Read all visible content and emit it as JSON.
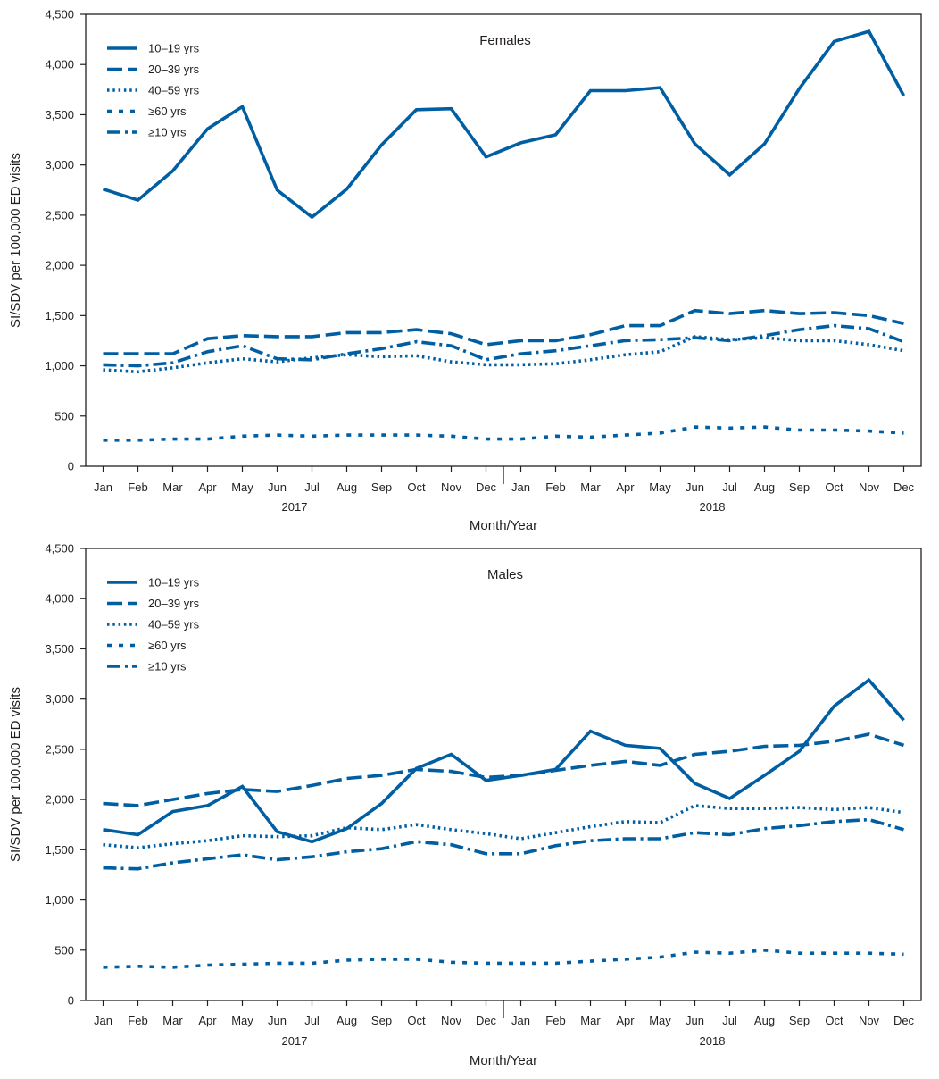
{
  "figure": {
    "series_color": "#005ea2",
    "axis_color": "#231f20"
  },
  "chart_data": [
    {
      "type": "line",
      "title": "Females",
      "xlabel": "Month/Year",
      "ylabel": "SI/SDV per 100,000 ED visits",
      "ylim": [
        0,
        4500
      ],
      "yticks": [
        0,
        500,
        1000,
        1500,
        2000,
        2500,
        3000,
        3500,
        4000,
        4500
      ],
      "ytick_labels": [
        "0",
        "500",
        "1,000",
        "1,500",
        "2,000",
        "2,500",
        "3,000",
        "3,500",
        "4,000",
        "4,500"
      ],
      "categories": [
        "Jan",
        "Feb",
        "Mar",
        "Apr",
        "May",
        "Jun",
        "Jul",
        "Aug",
        "Sep",
        "Oct",
        "Nov",
        "Dec",
        "Jan",
        "Feb",
        "Mar",
        "Apr",
        "May",
        "Jun",
        "Jul",
        "Aug",
        "Sep",
        "Oct",
        "Nov",
        "Dec"
      ],
      "year_labels": [
        "2017",
        "2018"
      ],
      "legend_position": "top-left",
      "grid": false,
      "series": [
        {
          "name": "10–19 yrs",
          "dash": "solid",
          "values": [
            2760,
            2650,
            2940,
            3360,
            3580,
            2750,
            2480,
            2760,
            3200,
            3550,
            3560,
            3080,
            3220,
            3300,
            3740,
            3740,
            3770,
            3210,
            2900,
            3210,
            3760,
            4230,
            4330,
            3690
          ]
        },
        {
          "name": "20–39 yrs",
          "dash": "long-dash",
          "values": [
            1120,
            1120,
            1120,
            1270,
            1300,
            1290,
            1290,
            1330,
            1330,
            1360,
            1320,
            1210,
            1250,
            1250,
            1310,
            1400,
            1400,
            1550,
            1520,
            1550,
            1520,
            1530,
            1500,
            1420
          ]
        },
        {
          "name": "40–59 yrs",
          "dash": "dotted",
          "values": [
            960,
            940,
            980,
            1030,
            1070,
            1040,
            1080,
            1110,
            1090,
            1100,
            1040,
            1010,
            1010,
            1020,
            1060,
            1110,
            1140,
            1290,
            1260,
            1280,
            1250,
            1250,
            1210,
            1150
          ]
        },
        {
          "name": "≥60 yrs",
          "dash": "short-dash",
          "values": [
            260,
            260,
            270,
            270,
            300,
            310,
            300,
            310,
            310,
            310,
            300,
            270,
            270,
            300,
            290,
            310,
            330,
            390,
            380,
            390,
            360,
            360,
            350,
            330
          ]
        },
        {
          "name": "≥10 yrs",
          "dash": "dash-dot",
          "values": [
            1010,
            1000,
            1030,
            1140,
            1200,
            1070,
            1060,
            1120,
            1170,
            1240,
            1200,
            1060,
            1120,
            1150,
            1200,
            1250,
            1260,
            1280,
            1250,
            1300,
            1360,
            1400,
            1370,
            1240
          ]
        }
      ]
    },
    {
      "type": "line",
      "title": "Males",
      "xlabel": "Month/Year",
      "ylabel": "SI/SDV per 100,000 ED visits",
      "ylim": [
        0,
        4500
      ],
      "yticks": [
        0,
        500,
        1000,
        1500,
        2000,
        2500,
        3000,
        3500,
        4000,
        4500
      ],
      "ytick_labels": [
        "0",
        "500",
        "1,000",
        "1,500",
        "2,000",
        "2,500",
        "3,000",
        "3,500",
        "4,000",
        "4,500"
      ],
      "categories": [
        "Jan",
        "Feb",
        "Mar",
        "Apr",
        "May",
        "Jun",
        "Jul",
        "Aug",
        "Sep",
        "Oct",
        "Nov",
        "Dec",
        "Jan",
        "Feb",
        "Mar",
        "Apr",
        "May",
        "Jun",
        "Jul",
        "Aug",
        "Sep",
        "Oct",
        "Nov",
        "Dec"
      ],
      "year_labels": [
        "2017",
        "2018"
      ],
      "legend_position": "top-left",
      "grid": false,
      "series": [
        {
          "name": "10–19 yrs",
          "dash": "solid",
          "values": [
            1700,
            1650,
            1880,
            1940,
            2130,
            1680,
            1580,
            1710,
            1960,
            2310,
            2450,
            2190,
            2240,
            2300,
            2680,
            2540,
            2510,
            2160,
            2010,
            2240,
            2480,
            2930,
            3190,
            2790
          ]
        },
        {
          "name": "20–39 yrs",
          "dash": "long-dash",
          "values": [
            1960,
            1940,
            2000,
            2060,
            2100,
            2080,
            2140,
            2210,
            2240,
            2300,
            2280,
            2220,
            2240,
            2290,
            2340,
            2380,
            2340,
            2450,
            2480,
            2530,
            2540,
            2580,
            2650,
            2540
          ]
        },
        {
          "name": "40–59 yrs",
          "dash": "dotted",
          "values": [
            1550,
            1520,
            1560,
            1590,
            1640,
            1630,
            1640,
            1720,
            1700,
            1750,
            1700,
            1660,
            1610,
            1670,
            1730,
            1780,
            1770,
            1940,
            1910,
            1910,
            1920,
            1900,
            1920,
            1870
          ]
        },
        {
          "name": "≥60 yrs",
          "dash": "short-dash",
          "values": [
            330,
            340,
            330,
            350,
            360,
            370,
            370,
            400,
            410,
            410,
            380,
            370,
            370,
            370,
            390,
            410,
            430,
            480,
            470,
            500,
            470,
            470,
            470,
            460
          ]
        },
        {
          "name": "≥10 yrs",
          "dash": "dash-dot",
          "values": [
            1320,
            1310,
            1370,
            1410,
            1450,
            1400,
            1430,
            1480,
            1510,
            1580,
            1550,
            1460,
            1460,
            1540,
            1590,
            1610,
            1610,
            1670,
            1650,
            1710,
            1740,
            1780,
            1800,
            1700
          ]
        }
      ]
    }
  ]
}
